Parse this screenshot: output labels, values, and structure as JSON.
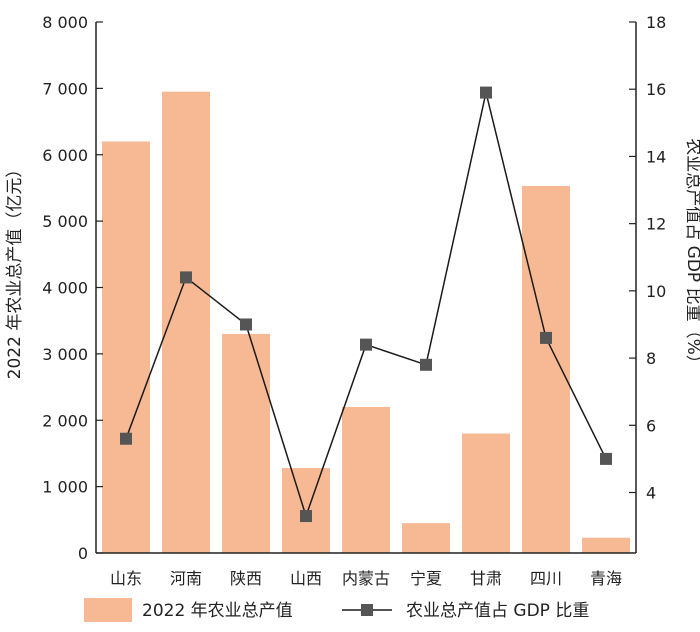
{
  "chart_data": {
    "type": "bar",
    "categories": [
      "山东",
      "河南",
      "陕西",
      "山西",
      "内蒙古",
      "宁夏",
      "甘肃",
      "四川",
      "青海"
    ],
    "series": [
      {
        "name": "2022 年农业总产值",
        "kind": "bar",
        "axis": "left",
        "values": [
          6200,
          6950,
          3300,
          1280,
          2200,
          450,
          1800,
          5530,
          230
        ]
      },
      {
        "name": "农业总产值占 GDP 比重",
        "kind": "line",
        "axis": "right",
        "values": [
          5.6,
          10.4,
          9.0,
          3.3,
          8.4,
          7.8,
          15.9,
          8.6,
          5.0
        ]
      }
    ],
    "ylabel": "2022 年农业总产值（亿元）",
    "y2label": "农业总产值占 GDP 比重（%）",
    "ylim": [
      0,
      8000
    ],
    "y2lim": [
      2.2,
      18
    ],
    "yticks": [
      "0",
      "1 000",
      "2 000",
      "3 000",
      "4 000",
      "5 000",
      "6 000",
      "7 000",
      "8 000"
    ],
    "y2ticks": [
      "4",
      "6",
      "8",
      "10",
      "12",
      "14",
      "16",
      "18"
    ],
    "grid": false,
    "legend_position": "bottom",
    "colors": {
      "bar": "#f6b993",
      "line": "#1a1a1a",
      "marker": "#555555",
      "axis": "#222222"
    }
  }
}
